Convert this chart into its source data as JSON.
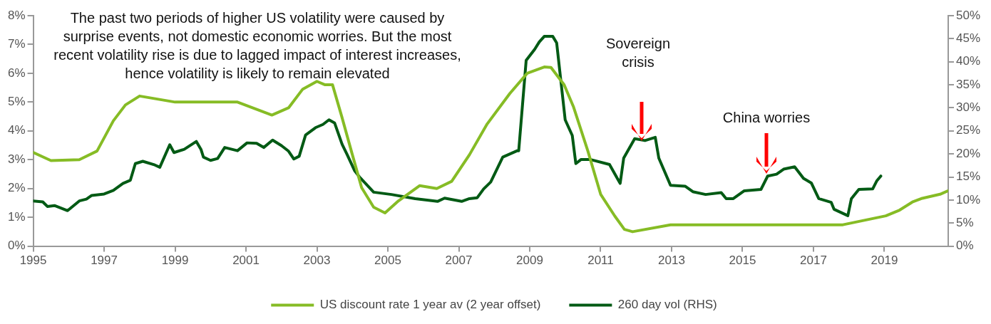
{
  "chart_data": {
    "type": "line",
    "legend": "bottom",
    "grid": false,
    "marker": "none",
    "line_style": "solid",
    "xlim": [
      1995,
      2020.8
    ],
    "xticks": [
      1995,
      1997,
      1999,
      2001,
      2003,
      2005,
      2007,
      2009,
      2011,
      2013,
      2015,
      2017,
      2019
    ],
    "ylim": [
      0,
      8
    ],
    "yticks": [
      {
        "value": 0,
        "label": "0%"
      },
      {
        "value": 1,
        "label": "1%"
      },
      {
        "value": 2,
        "label": "2%"
      },
      {
        "value": 3,
        "label": "3%"
      },
      {
        "value": 4,
        "label": "4%"
      },
      {
        "value": 5,
        "label": "5%"
      },
      {
        "value": 6,
        "label": "6%"
      },
      {
        "value": 7,
        "label": "7%"
      },
      {
        "value": 8,
        "label": "8%"
      }
    ],
    "y2lim": [
      0,
      50
    ],
    "y2ticks": [
      {
        "value": 0,
        "label": "0%"
      },
      {
        "value": 5,
        "label": "5%"
      },
      {
        "value": 10,
        "label": "10%"
      },
      {
        "value": 15,
        "label": "15%"
      },
      {
        "value": 20,
        "label": "20%"
      },
      {
        "value": 25,
        "label": "25%"
      },
      {
        "value": 30,
        "label": "30%"
      },
      {
        "value": 35,
        "label": "35%"
      },
      {
        "value": 40,
        "label": "40%"
      },
      {
        "value": 45,
        "label": "45%"
      },
      {
        "value": 50,
        "label": "50%"
      }
    ],
    "annotations": [
      "The past two periods of higher US volatility were caused by surprise events, not domestic economic worries. But the most recent volatility rise is due to lagged impact of interest increases, hence volatility is likely to remain elevated",
      "Sovereign crisis",
      "China worries"
    ],
    "series": [
      {
        "name": "US discount rate 1 year av (2 year offset)",
        "color": "#86bc25",
        "x": [
          1995,
          1995.5,
          1996.3,
          1996.8,
          1997.26,
          1997.6,
          1998,
          1999,
          2000.76,
          2001.73,
          2002.2,
          2002.6,
          2003,
          2003.23,
          2003.44,
          2003.7,
          2004,
          2004.26,
          2004.6,
          2004.92,
          2005.3,
          2005.9,
          2006.38,
          2006.8,
          2007.3,
          2007.8,
          2008.44,
          2008.93,
          2009.41,
          2009.6,
          2009.97,
          2010.23,
          2010.64,
          2011,
          2011.4,
          2011.67,
          2011.9,
          2012.97,
          2017.83,
          2019.04,
          2019.43,
          2019.79,
          2020.07,
          2020.57,
          2020.8
        ],
        "values": [
          3.25,
          2.97,
          3,
          3.3,
          4.35,
          4.9,
          5.21,
          5,
          5,
          4.55,
          4.8,
          5.45,
          5.72,
          5.6,
          5.6,
          4.5,
          3.17,
          2.03,
          1.35,
          1.15,
          1.57,
          2.1,
          2,
          2.25,
          3.17,
          4.24,
          5.3,
          6,
          6.22,
          6.2,
          5.6,
          4.85,
          3.3,
          1.8,
          1.04,
          0.58,
          0.5,
          0.74,
          0.74,
          1.05,
          1.25,
          1.53,
          1.66,
          1.8,
          1.92
        ]
      },
      {
        "name": "260 day vol (RHS)",
        "color": "#005a14",
        "axis": "y2",
        "x": [
          1995,
          1995.27,
          1995.4,
          1995.6,
          1995.97,
          1996.3,
          1996.5,
          1996.65,
          1997,
          1997.26,
          1997.53,
          1997.74,
          1997.88,
          1998.09,
          1998.43,
          1998.57,
          1998.85,
          1998.97,
          1999.26,
          1999.6,
          1999.73,
          1999.8,
          2000,
          2000.2,
          2000.4,
          2000.76,
          2001.03,
          2001.3,
          2001.5,
          2001.75,
          2002,
          2002.2,
          2002.35,
          2002.5,
          2002.68,
          2002.96,
          2003.17,
          2003.34,
          2003.5,
          2003.71,
          2003.85,
          2004.06,
          2004.2,
          2004.6,
          2005.1,
          2005.77,
          2006.4,
          2006.6,
          2007.08,
          2007.3,
          2007.52,
          2007.7,
          2007.9,
          2008.24,
          2008.65,
          2008.69,
          2008.9,
          2009.14,
          2009.27,
          2009.41,
          2009.65,
          2009.76,
          2010,
          2010.2,
          2010.3,
          2010.45,
          2010.7,
          2011.25,
          2011.55,
          2011.65,
          2011.96,
          2012.25,
          2012.54,
          2012.64,
          2012.97,
          2013.38,
          2013.6,
          2013.96,
          2014.4,
          2014.54,
          2014.74,
          2015.05,
          2015.52,
          2015.71,
          2015.96,
          2016.16,
          2016.47,
          2016.72,
          2016.94,
          2017.15,
          2017.5,
          2017.58,
          2017.97,
          2018.07,
          2018.28,
          2018.67,
          2018.79,
          2018.9
        ],
        "values": [
          9.8,
          9.6,
          8.6,
          8.8,
          7.7,
          9.8,
          10.2,
          11,
          11.3,
          12.1,
          13.6,
          14.3,
          17.9,
          18.4,
          17.6,
          17.1,
          22,
          20.3,
          21,
          22.7,
          21,
          19.3,
          18.6,
          19,
          21.4,
          20.7,
          22.4,
          22.3,
          21.4,
          23,
          21.8,
          20.6,
          18.9,
          19.5,
          24.1,
          25.7,
          26.4,
          27.4,
          26.7,
          22.1,
          19.9,
          16.4,
          15,
          11.7,
          11.2,
          10.3,
          9.7,
          10.4,
          9.7,
          10.3,
          10.5,
          12.4,
          13.9,
          19.3,
          20.7,
          20.7,
          40.3,
          42.7,
          44.3,
          45.5,
          45.5,
          44.1,
          27.4,
          24,
          17.9,
          18.8,
          18.8,
          17.7,
          13.6,
          19.1,
          23.3,
          22.9,
          23.6,
          19.1,
          13.2,
          13,
          11.8,
          11.2,
          11.6,
          10.3,
          10.3,
          12,
          12.3,
          15.2,
          15.6,
          16.7,
          17.2,
          14.7,
          13.7,
          10.3,
          9.5,
          8,
          6.6,
          10.3,
          12.3,
          12.4,
          14.2,
          15.2
        ]
      }
    ]
  }
}
